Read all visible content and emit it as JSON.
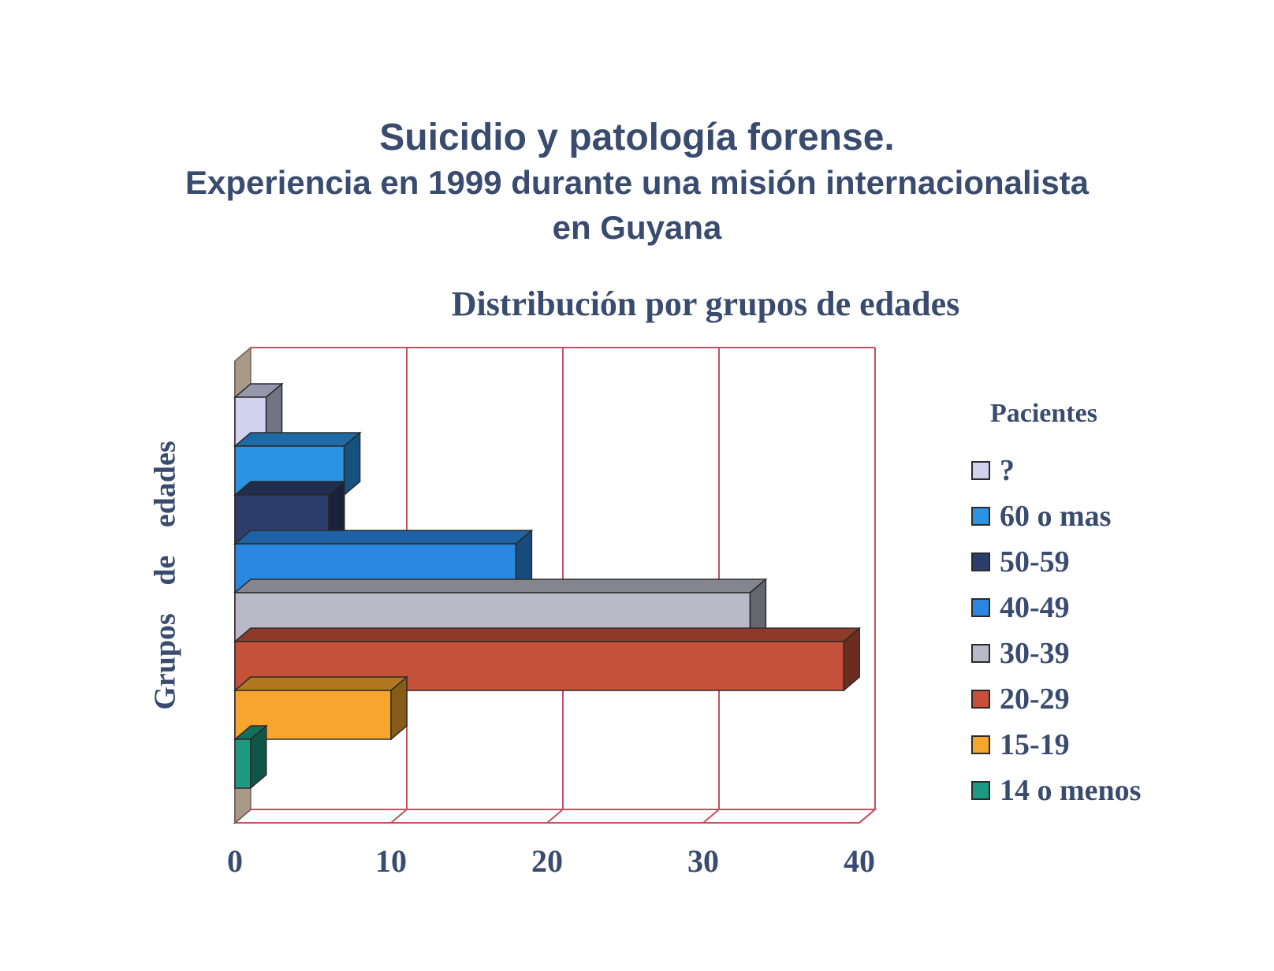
{
  "header": {
    "title_line1": "Suicidio y patología forense.",
    "title_line2": "Experiencia en 1999 durante una misión internacionalista",
    "title_line3": "en Guyana"
  },
  "chart_data": {
    "type": "bar",
    "orientation": "horizontal",
    "three_d": true,
    "title": "Distribución por grupos de edades",
    "ylabel": "Grupos de edades",
    "xlabel": "",
    "xlim": [
      0,
      40
    ],
    "x_ticks": [
      "0",
      "10",
      "20",
      "30",
      "40"
    ],
    "grid": "vertical",
    "legend_title": "Pacientes",
    "legend_position": "right",
    "series": [
      {
        "name": "?",
        "value": 2,
        "color": "#d0d2ee"
      },
      {
        "name": "60 o mas",
        "value": 7,
        "color": "#2a93e4"
      },
      {
        "name": "50-59",
        "value": 6,
        "color": "#2c3f6c"
      },
      {
        "name": "40-49",
        "value": 18,
        "color": "#2a88e2"
      },
      {
        "name": "30-39",
        "value": 33,
        "color": "#b9b9c7"
      },
      {
        "name": "20-29",
        "value": 39,
        "color": "#c5513a"
      },
      {
        "name": "15-19",
        "value": 10,
        "color": "#f6a62c"
      },
      {
        "name": "14 o menos",
        "value": 1,
        "color": "#1c9a83"
      }
    ]
  }
}
